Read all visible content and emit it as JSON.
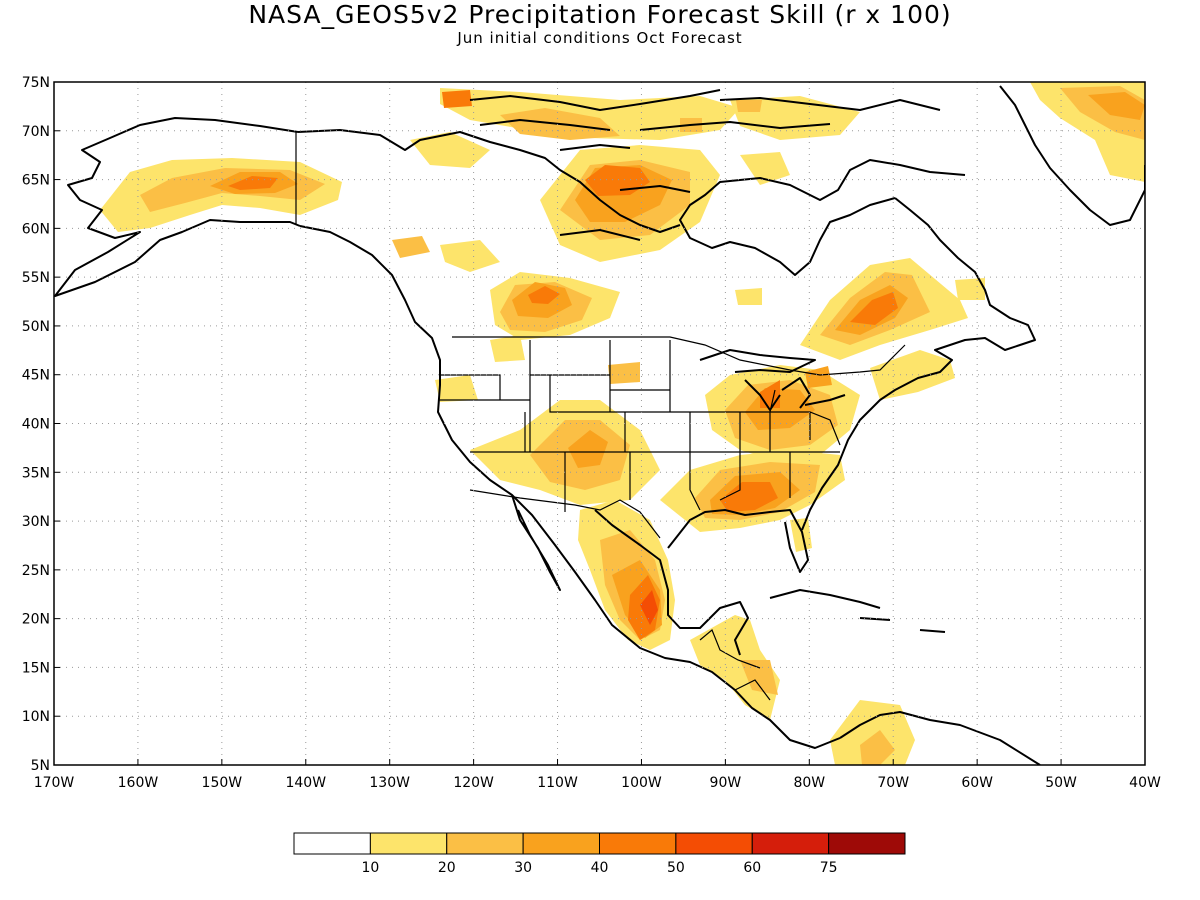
{
  "title": "NASA_GEOS5v2 Precipitation Forecast Skill (r x 100)",
  "subtitle": "Jun initial conditions  Oct Forecast",
  "map": {
    "lon_range": [
      -170,
      -40
    ],
    "lat_range": [
      5,
      75
    ],
    "lat_ticks": [
      "75N",
      "70N",
      "65N",
      "60N",
      "55N",
      "50N",
      "45N",
      "40N",
      "35N",
      "30N",
      "25N",
      "20N",
      "15N",
      "10N",
      "5N"
    ],
    "lon_ticks": [
      "170W",
      "160W",
      "150W",
      "140W",
      "130W",
      "120W",
      "110W",
      "100W",
      "90W",
      "80W",
      "70W",
      "60W",
      "50W",
      "40W"
    ],
    "grid": "dotted"
  },
  "legend": {
    "labels": [
      "10",
      "20",
      "30",
      "40",
      "50",
      "60",
      "75"
    ],
    "colors": [
      "#ffffff",
      "#fde46b",
      "#fbbf45",
      "#f9a21e",
      "#f97a08",
      "#f44d04",
      "#d51e0b",
      "#9e0a07"
    ]
  },
  "skill_regions": [
    {
      "lon": -147,
      "lat": 64.5,
      "value": 50
    },
    {
      "lon": -112,
      "lat": 52.5,
      "value": 45
    },
    {
      "lon": -105,
      "lat": 65,
      "value": 50
    },
    {
      "lon": -73,
      "lat": 51,
      "value": 50
    },
    {
      "lon": -88,
      "lat": 32,
      "value": 50
    },
    {
      "lon": -99,
      "lat": 20,
      "value": 50
    },
    {
      "lon": -85,
      "lat": 42,
      "value": 45
    },
    {
      "lon": -43,
      "lat": 72.5,
      "value": 35
    },
    {
      "lon": -122,
      "lat": 73,
      "value": 50
    }
  ]
}
